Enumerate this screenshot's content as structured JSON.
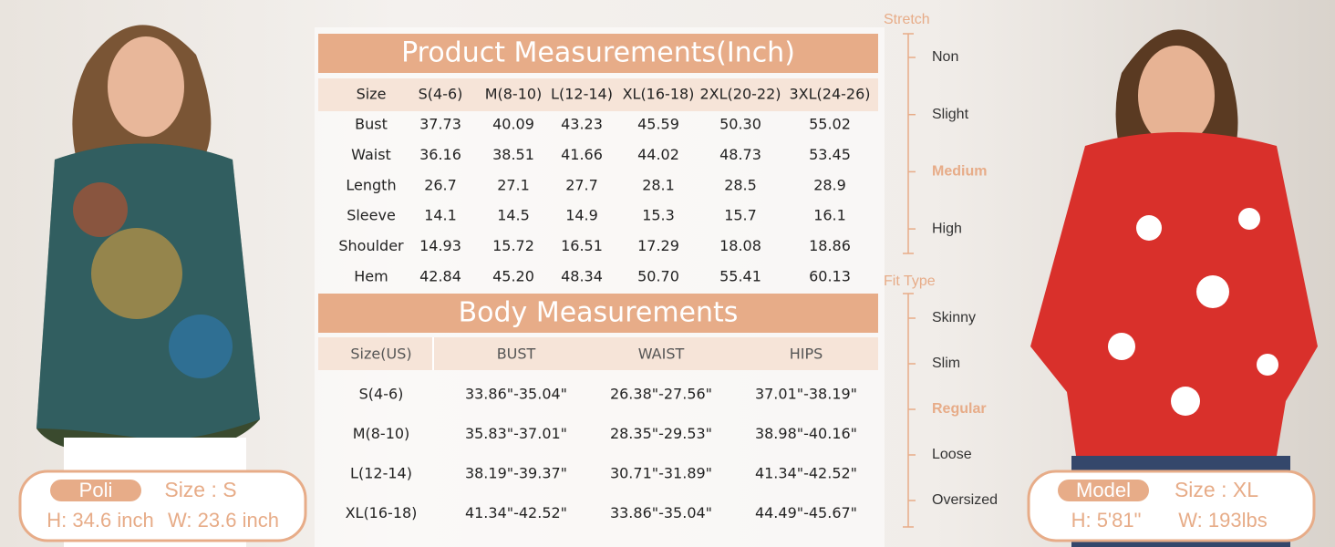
{
  "product_measurements": {
    "title": "Product Measurements(Inch)",
    "header": [
      "Size",
      "S(4-6)",
      "M(8-10)",
      "L(12-14)",
      "XL(16-18)",
      "2XL(20-22)",
      "3XL(24-26)"
    ],
    "rows": [
      [
        "Bust",
        "37.73",
        "40.09",
        "43.23",
        "45.59",
        "50.30",
        "55.02"
      ],
      [
        "Waist",
        "36.16",
        "38.51",
        "41.66",
        "44.02",
        "48.73",
        "53.45"
      ],
      [
        "Length",
        "26.7",
        "27.1",
        "27.7",
        "28.1",
        "28.5",
        "28.9"
      ],
      [
        "Sleeve",
        "14.1",
        "14.5",
        "14.9",
        "15.3",
        "15.7",
        "16.1"
      ],
      [
        "Shoulder",
        "14.93",
        "15.72",
        "16.51",
        "17.29",
        "18.08",
        "18.86"
      ],
      [
        "Hem",
        "42.84",
        "45.20",
        "48.34",
        "50.70",
        "55.41",
        "60.13"
      ]
    ]
  },
  "body_measurements": {
    "title": "Body Measurements",
    "header": [
      "Size(US)",
      "BUST",
      "WAIST",
      "HIPS"
    ],
    "rows": [
      [
        "S(4-6)",
        "33.86\"-35.04\"",
        "26.38\"-27.56\"",
        "37.01\"-38.19\""
      ],
      [
        "M(8-10)",
        "35.83\"-37.01\"",
        "28.35\"-29.53\"",
        "38.98\"-40.16\""
      ],
      [
        "L(12-14)",
        "38.19\"-39.37\"",
        "30.71\"-31.89\"",
        "41.34\"-42.52\""
      ],
      [
        "XL(16-18)",
        "41.34\"-42.52\"",
        "33.86\"-35.04\"",
        "44.49\"-45.67\""
      ]
    ]
  },
  "stretch": {
    "title": "Stretch",
    "levels": [
      "Non",
      "Slight",
      "Medium",
      "High"
    ],
    "selected": 2
  },
  "fit_type": {
    "title": "Fit Type",
    "levels": [
      "Skinny",
      "Slim",
      "Regular",
      "Loose",
      "Oversized"
    ],
    "selected": 2
  },
  "models": [
    {
      "name": "Poli",
      "size": "Size : S",
      "height": "H: 34.6 inch",
      "weight": "W: 23.6 inch"
    },
    {
      "name": "Model",
      "size": "Size : XL",
      "height": "H: 5'81\"",
      "weight": "W: 193lbs"
    }
  ]
}
